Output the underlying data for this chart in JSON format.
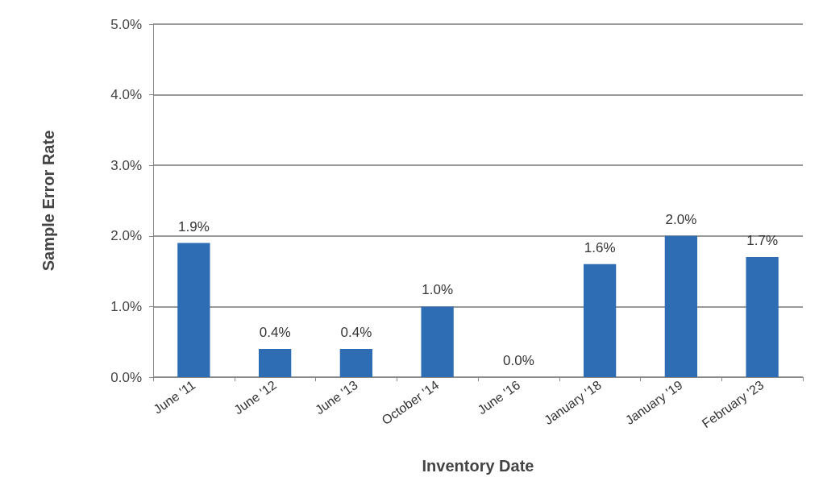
{
  "chart_data": {
    "type": "bar",
    "xlabel": "Inventory Date",
    "ylabel": "Sample Error Rate",
    "categories": [
      "June '11",
      "June '12",
      "June '13",
      "October '14",
      "June '16",
      "January '18",
      "January '19",
      "February '23"
    ],
    "values": [
      1.9,
      0.4,
      0.4,
      1.0,
      0.0,
      1.6,
      2.0,
      1.7
    ],
    "value_labels": [
      "1.9%",
      "0.4%",
      "0.4%",
      "1.0%",
      "0.0%",
      "1.6%",
      "2.0%",
      "1.7%"
    ],
    "color": "#2e6db4",
    "ylim": [
      0,
      5
    ],
    "yticks": [
      {
        "value": 0,
        "label": "0.0%"
      },
      {
        "value": 1,
        "label": "1.0%"
      },
      {
        "value": 2,
        "label": "2.0%"
      },
      {
        "value": 3,
        "label": "3.0%"
      },
      {
        "value": 4,
        "label": "4.0%"
      },
      {
        "value": 5,
        "label": "5.0%"
      }
    ],
    "grid": "y"
  }
}
